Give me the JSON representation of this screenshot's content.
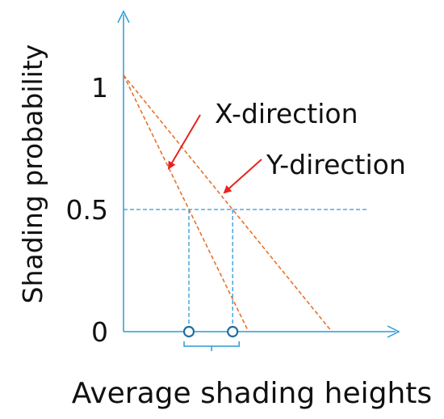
{
  "chart_data": {
    "type": "line",
    "xlabel": "Average shading heights",
    "ylabel": "Shading probability",
    "y_ticks": [
      {
        "label": "1",
        "value": 1.0
      },
      {
        "label": "0.5",
        "value": 0.5
      },
      {
        "label": "0",
        "value": 0.0
      }
    ],
    "x_axis": "no numeric scale; relative units 0 (origin) to 1 (right end of shading lines)",
    "ylim": [
      0,
      1.5
    ],
    "series": [
      {
        "name": "X-direction",
        "x": [
          0.0,
          0.6
        ],
        "y": [
          1.05,
          0.0
        ],
        "style": "dashed",
        "color": "#e8722a"
      },
      {
        "name": "Y-direction",
        "x": [
          0.0,
          1.0
        ],
        "y": [
          1.05,
          0.0
        ],
        "style": "dashed",
        "color": "#e8722a"
      }
    ],
    "reference_line": {
      "y": 0.5,
      "style": "dashed",
      "color": "#2b9bd6"
    },
    "crossings": [
      {
        "series": "X-direction",
        "x": 0.314,
        "y": 0.5
      },
      {
        "series": "Y-direction",
        "x": 0.524,
        "y": 0.5
      }
    ],
    "annotations": [
      {
        "text": "X-direction",
        "points_to": "X-direction"
      },
      {
        "text": "Y-direction",
        "points_to": "Y-direction"
      }
    ],
    "grid": false,
    "legend": "none",
    "colors": {
      "axis": "#2b9bd6",
      "lines": "#e8722a",
      "arrows": "#e8221f"
    }
  }
}
